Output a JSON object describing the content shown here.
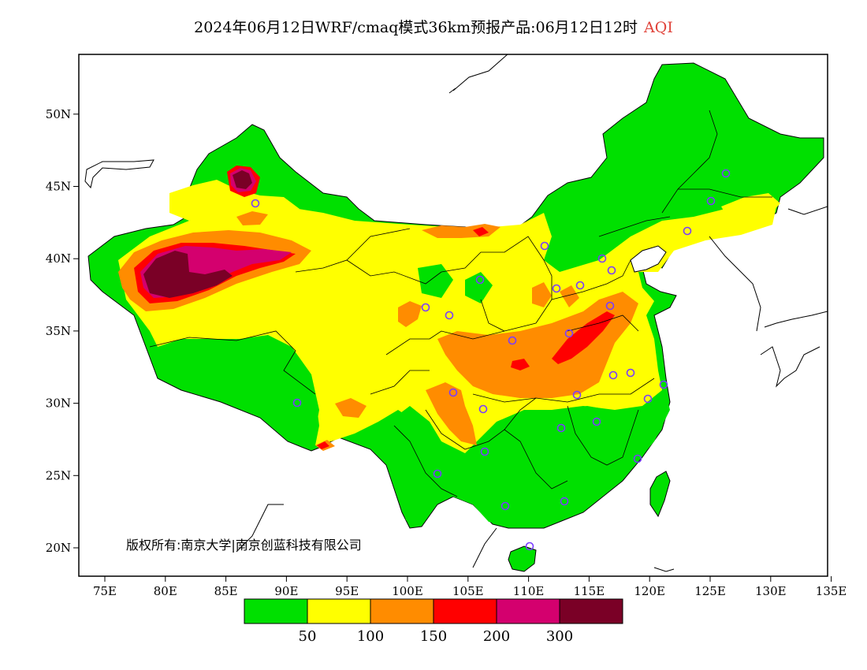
{
  "title": {
    "main": "2024年06月12日WRF/cmaq模式36km预报产品:06月12日12时",
    "variable": "AQI"
  },
  "lon_ticks": [
    "75E",
    "80E",
    "85E",
    "90E",
    "95E",
    "100E",
    "105E",
    "110E",
    "115E",
    "120E",
    "125E",
    "130E",
    "135E"
  ],
  "lat_ticks": [
    "20N",
    "25N",
    "30N",
    "35N",
    "40N",
    "45N",
    "50N"
  ],
  "copyright": "版权所有:南京大学|南京创蓝科技有限公司",
  "legend": {
    "colors": [
      "#00e000",
      "#ffff00",
      "#ff8c00",
      "#ff0000",
      "#d4006e",
      "#7a0026"
    ],
    "labels": [
      "50",
      "100",
      "150",
      "200",
      "300"
    ]
  },
  "palette": {
    "good": "#00e000",
    "moderate": "#ffff00",
    "sensitive": "#ff8c00",
    "unhealthy": "#ff0000",
    "very_unhealthy": "#d4006e",
    "hazardous": "#7a0026",
    "station_marker": "#7a3cff"
  },
  "stations_count": 40
}
